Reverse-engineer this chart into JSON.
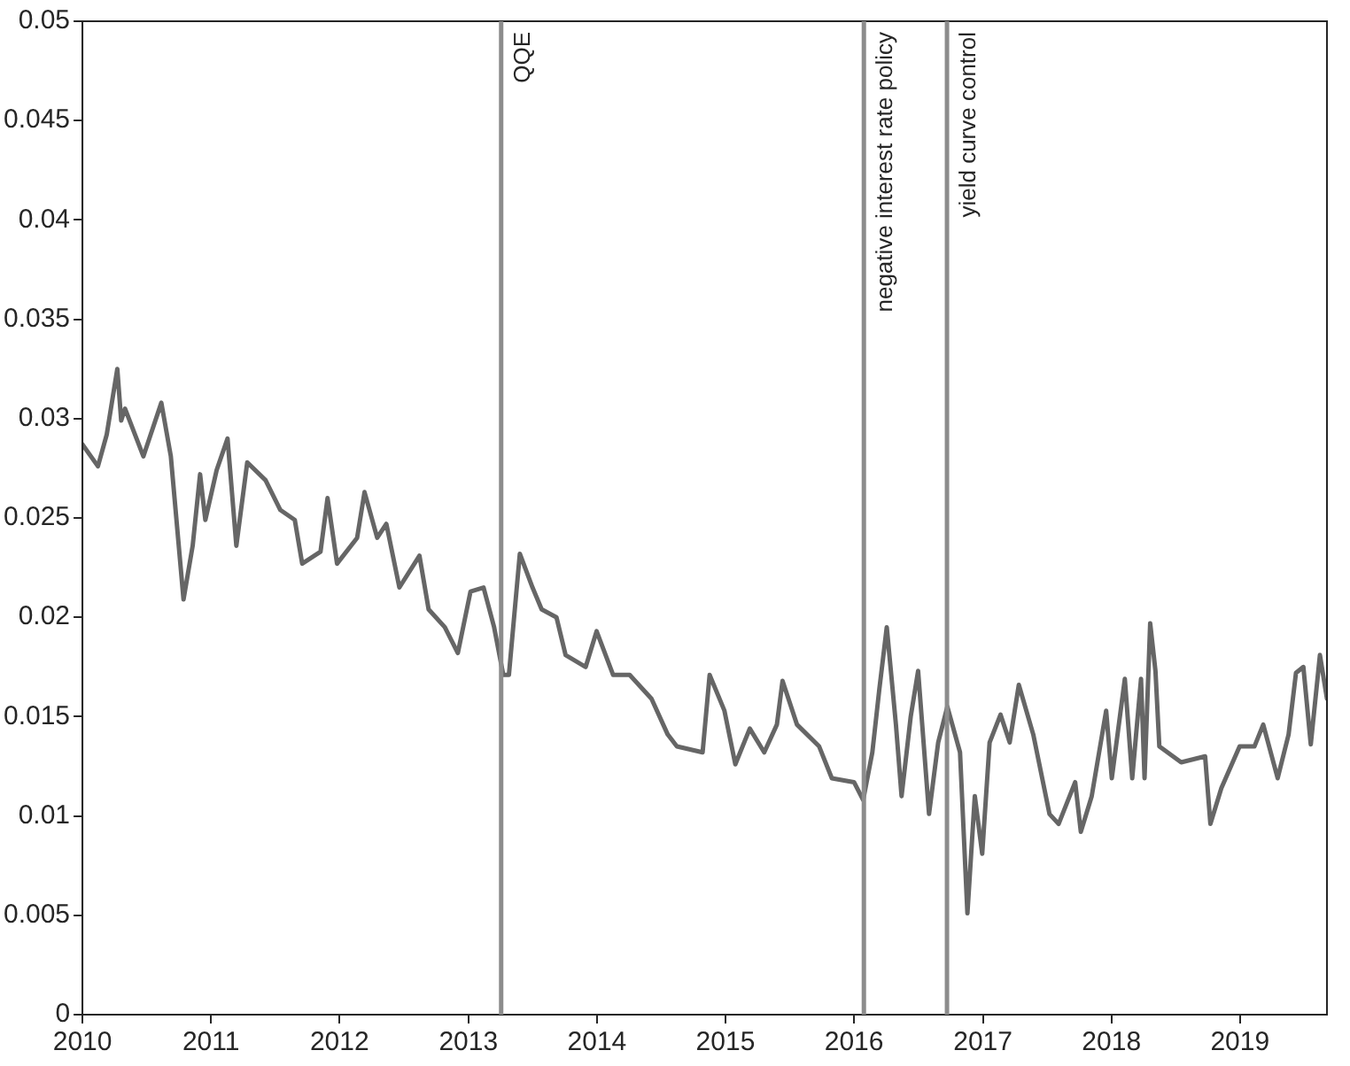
{
  "chart_data": {
    "type": "line",
    "x": [
      "2010-01-01",
      "2010-02-14",
      "2010-03-11",
      "2010-04-10",
      "2010-04-21",
      "2010-05-02",
      "2010-06-23",
      "2010-08-13",
      "2010-09-09",
      "2010-10-15",
      "2010-11-10",
      "2010-12-01",
      "2010-12-16",
      "2011-01-17",
      "2011-02-17",
      "2011-03-14",
      "2011-04-14",
      "2011-06-05",
      "2011-07-17",
      "2011-08-27",
      "2011-09-17",
      "2011-11-08",
      "2011-11-28",
      "2011-12-25",
      "2012-02-20",
      "2012-03-12",
      "2012-04-17",
      "2012-05-13",
      "2012-06-19",
      "2012-08-15",
      "2012-09-10",
      "2012-10-26",
      "2012-12-02",
      "2013-01-07",
      "2013-02-13",
      "2013-03-15",
      "2013-04-10",
      "2013-04-26",
      "2013-05-27",
      "2013-07-02",
      "2013-07-28",
      "2013-09-08",
      "2013-10-04",
      "2013-11-30",
      "2013-12-31",
      "2014-02-16",
      "2014-04-04",
      "2014-06-05",
      "2014-07-21",
      "2014-08-16",
      "2014-10-28",
      "2014-11-17",
      "2014-12-29",
      "2015-01-29",
      "2015-03-11",
      "2015-04-21",
      "2015-05-27",
      "2015-06-12",
      "2015-07-23",
      "2015-09-24",
      "2015-10-30",
      "2016-01-01",
      "2016-01-27",
      "2016-02-22",
      "2016-03-13",
      "2016-04-03",
      "2016-04-29",
      "2016-05-15",
      "2016-06-10",
      "2016-07-01",
      "2016-08-01",
      "2016-08-27",
      "2016-09-22",
      "2016-10-28",
      "2016-11-18",
      "2016-12-09",
      "2016-12-30",
      "2017-01-20",
      "2017-02-20",
      "2017-03-18",
      "2017-04-13",
      "2017-05-24",
      "2017-07-09",
      "2017-08-04",
      "2017-09-20",
      "2017-10-06",
      "2017-11-06",
      "2017-12-17",
      "2018-01-02",
      "2018-02-08",
      "2018-03-01",
      "2018-03-26",
      "2018-04-05",
      "2018-04-21",
      "2018-05-06",
      "2018-05-17",
      "2018-07-18",
      "2018-09-24",
      "2018-10-09",
      "2018-11-09",
      "2018-12-31",
      "2019-02-11",
      "2019-03-08",
      "2019-04-18",
      "2019-05-19",
      "2019-06-09",
      "2019-06-30",
      "2019-07-21",
      "2019-08-16",
      "2019-09-05"
    ],
    "series": [
      {
        "color": "#666666",
        "values": [
          0.0287,
          0.0276,
          0.0292,
          0.0325,
          0.0299,
          0.0305,
          0.0281,
          0.0308,
          0.0281,
          0.0209,
          0.0236,
          0.0272,
          0.0249,
          0.0274,
          0.029,
          0.0236,
          0.0278,
          0.0269,
          0.0254,
          0.0249,
          0.0227,
          0.0233,
          0.026,
          0.0227,
          0.024,
          0.0263,
          0.024,
          0.0247,
          0.0215,
          0.0231,
          0.0204,
          0.0195,
          0.0182,
          0.0213,
          0.0215,
          0.0195,
          0.0171,
          0.0171,
          0.0232,
          0.0215,
          0.0204,
          0.02,
          0.0181,
          0.0175,
          0.0193,
          0.0171,
          0.0171,
          0.0159,
          0.0141,
          0.0135,
          0.0132,
          0.0171,
          0.0153,
          0.0126,
          0.0144,
          0.0132,
          0.0146,
          0.0168,
          0.0146,
          0.0135,
          0.0119,
          0.0117,
          0.0108,
          0.0132,
          0.0164,
          0.0195,
          0.0146,
          0.011,
          0.015,
          0.0173,
          0.0101,
          0.0137,
          0.0155,
          0.0132,
          0.0051,
          0.011,
          0.0081,
          0.0137,
          0.0151,
          0.0137,
          0.0166,
          0.0141,
          0.0101,
          0.0096,
          0.0117,
          0.0092,
          0.011,
          0.0153,
          0.0119,
          0.0169,
          0.0119,
          0.0169,
          0.0119,
          0.0197,
          0.0173,
          0.0135,
          0.0127,
          0.013,
          0.0096,
          0.0114,
          0.0135,
          0.0135,
          0.0146,
          0.0119,
          0.0141,
          0.0172,
          0.0175,
          0.0136,
          0.0181,
          0.0159
        ]
      }
    ],
    "xlim": [
      "2010-01-01",
      "2019-09-05"
    ],
    "xticks": [
      "2010",
      "2011",
      "2012",
      "2013",
      "2014",
      "2015",
      "2016",
      "2017",
      "2018",
      "2019"
    ],
    "ylim": [
      0,
      0.05
    ],
    "yticks": [
      0,
      0.005,
      0.01,
      0.015,
      0.02,
      0.025,
      0.03,
      0.035,
      0.04,
      0.045,
      0.05
    ],
    "ref_lines": [
      {
        "axis": "x",
        "value": "2013-04-04",
        "label": "QQE",
        "color": "#8c8c8c"
      },
      {
        "axis": "x",
        "value": "2016-01-29",
        "label": "negative interest rate policy",
        "color": "#8c8c8c"
      },
      {
        "axis": "x",
        "value": "2016-09-21",
        "label": "yield curve control",
        "color": "#8c8c8c"
      }
    ],
    "grid": false,
    "legend": false,
    "marker": "none",
    "line_style": "solid"
  }
}
